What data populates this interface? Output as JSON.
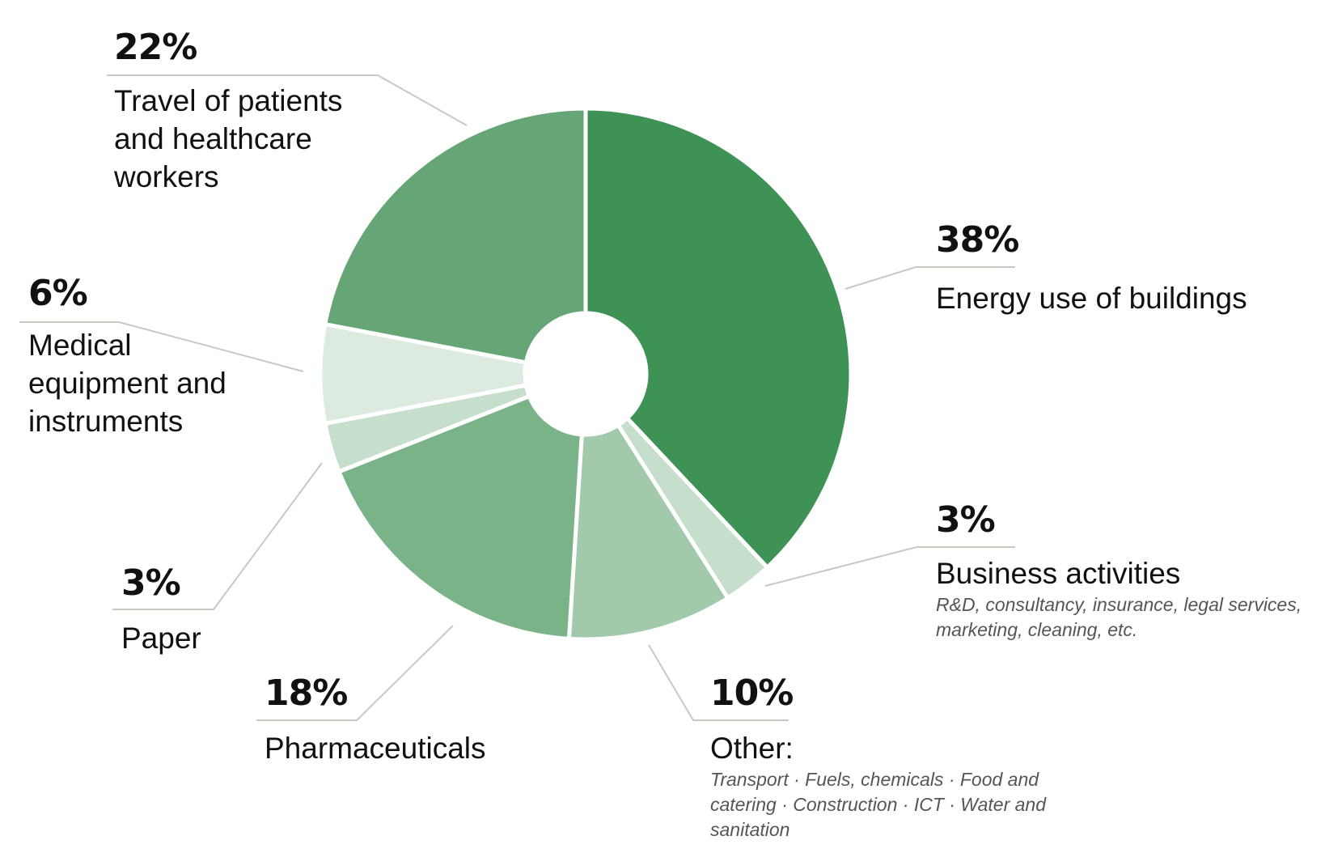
{
  "chart_data": {
    "type": "pie",
    "style": "donut",
    "start_angle_deg": 0,
    "direction": "clockwise",
    "slices": [
      {
        "label": "Energy use of buildings",
        "percent_label": "38%",
        "value": 38,
        "color": "#3f9255",
        "note": ""
      },
      {
        "label": "Business activities",
        "percent_label": "3%",
        "value": 3,
        "color": "#c6dfcc",
        "note": "R&D, consultancy, insurance, legal services, marketing, cleaning, etc."
      },
      {
        "label": "Other:",
        "percent_label": "10%",
        "value": 10,
        "color": "#a3c9ad",
        "note": "Transport · Fuels, chemicals · Food and catering · Construction · ICT · Water and sanitation"
      },
      {
        "label": "Pharmaceuticals",
        "percent_label": "18%",
        "value": 18,
        "color": "#7bb388",
        "note": ""
      },
      {
        "label": "Paper",
        "percent_label": "3%",
        "value": 3,
        "color": "#c6dfcc",
        "note": ""
      },
      {
        "label": "Medical equipment and instruments",
        "percent_label": "6%",
        "value": 6,
        "color": "#dceae0",
        "note": ""
      },
      {
        "label": "Travel of patients and healthcare workers",
        "percent_label": "22%",
        "value": 22,
        "color": "#66a676",
        "note": ""
      }
    ],
    "leader_line_color": "#c9c9c3"
  }
}
